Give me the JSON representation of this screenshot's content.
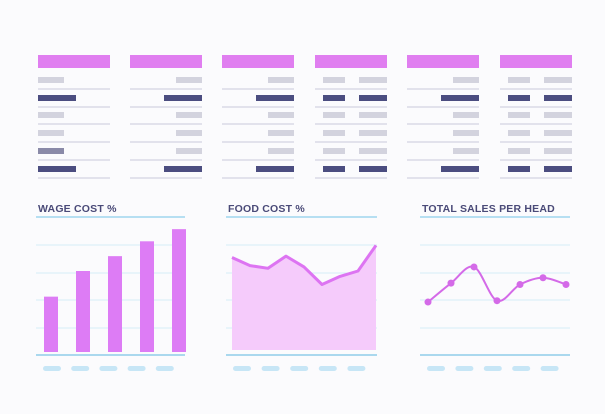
{
  "chart_data": [
    {
      "type": "bar",
      "title": "WAGE COST %",
      "categories": [
        null,
        null,
        null,
        null,
        null
      ],
      "values": [
        41,
        60,
        71,
        82,
        91
      ],
      "color": "#dd7cf5",
      "ylim": [
        0,
        100
      ]
    },
    {
      "type": "area",
      "title": "FOOD COST %",
      "categories": [
        null,
        null,
        null,
        null,
        null,
        null,
        null,
        null,
        null
      ],
      "values": [
        70,
        64,
        62,
        71,
        63,
        50,
        56,
        60,
        79
      ],
      "color": "#dd74f2",
      "ylim": [
        0,
        100
      ]
    },
    {
      "type": "line",
      "title": "TOTAL SALES PER HEAD",
      "categories": [
        null,
        null,
        null,
        null,
        null,
        null,
        null
      ],
      "values": [
        37,
        51,
        63,
        38,
        50,
        55,
        50
      ],
      "color": "#d46ae8",
      "ylim": [
        0,
        100
      ]
    }
  ]
}
